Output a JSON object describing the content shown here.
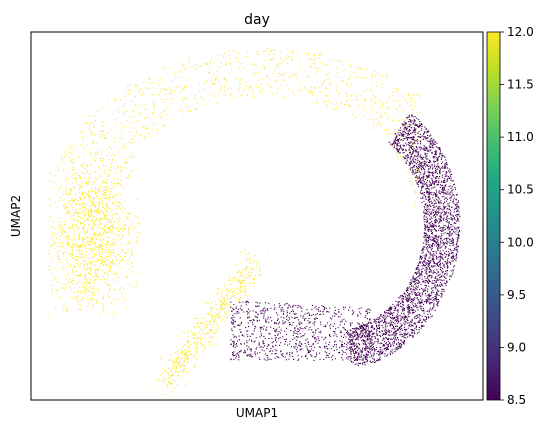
{
  "chart_data": {
    "type": "scatter",
    "title": "day",
    "xlabel": "UMAP1",
    "ylabel": "UMAP2",
    "xticks": [],
    "yticks": [],
    "grid": false,
    "legend": "none",
    "color_encoding": {
      "variable": "day",
      "colormap": "viridis",
      "range": [
        8.5,
        12.0
      ],
      "ticks": [
        8.5,
        9.0,
        9.5,
        10.0,
        10.5,
        11.0,
        11.5,
        12.0
      ],
      "tick_labels": [
        "8.5",
        "9.0",
        "9.5",
        "10.0",
        "10.5",
        "11.0",
        "11.5",
        "12.0"
      ],
      "low_color": "#440154",
      "high_color": "#fde725"
    },
    "groups": [
      {
        "label": "day 8.5",
        "color_value": 8.5,
        "description": "right and lower-right part of the crescent embedding"
      },
      {
        "label": "day 12.0",
        "color_value": 12.0,
        "description": "upper arc, left lobe and lower-left streak of the embedding"
      }
    ]
  }
}
